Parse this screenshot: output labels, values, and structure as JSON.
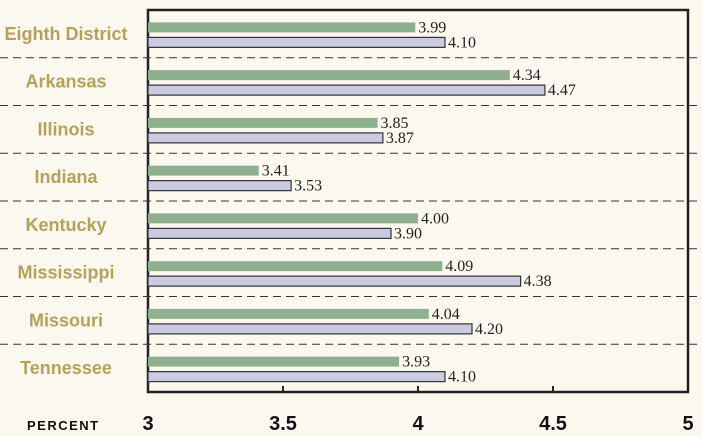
{
  "chart_data": {
    "type": "bar",
    "orientation": "horizontal",
    "categories": [
      "Eighth District",
      "Arkansas",
      "Illinois",
      "Indiana",
      "Kentucky",
      "Mississippi",
      "Missouri",
      "Tennessee"
    ],
    "series": [
      {
        "color": "#8fb08f",
        "values": [
          3.99,
          4.34,
          3.85,
          3.41,
          4.0,
          4.09,
          4.04,
          3.93
        ]
      },
      {
        "color": "#c9cbe0",
        "values": [
          4.1,
          4.47,
          3.87,
          3.53,
          3.9,
          4.38,
          4.2,
          4.1
        ]
      }
    ],
    "value_labels": [
      [
        "3.99",
        "4.34",
        "3.85",
        "3.41",
        "4.00",
        "4.09",
        "4.04",
        "3.93"
      ],
      [
        "4.10",
        "4.47",
        "3.87",
        "3.53",
        "3.90",
        "4.38",
        "4.20",
        "4.10"
      ]
    ],
    "xlim": [
      3,
      5
    ],
    "xticks": [
      3,
      3.5,
      4,
      4.5,
      5
    ],
    "xtick_labels": [
      "3",
      "3.5",
      "4",
      "4.5",
      "5"
    ],
    "xlabel": "PERCENT",
    "grid": "dashed separators between categories",
    "legend": "none"
  }
}
